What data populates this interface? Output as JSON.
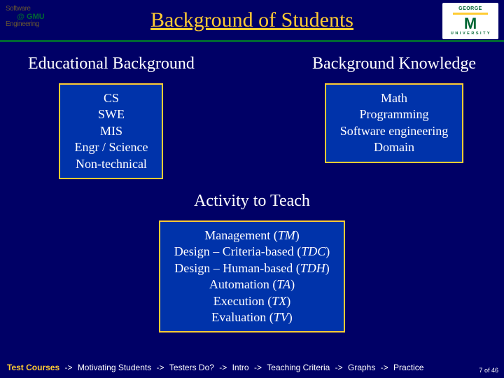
{
  "header": {
    "logo_left_line1": "@ GMU",
    "title": "Background of Students",
    "mason_letter": "M",
    "mason_line1": "GEORGE",
    "mason_line2": "U N I V E R S I T Y"
  },
  "left_col": {
    "heading": "Educational Background",
    "box": {
      "lines": [
        "CS",
        "SWE",
        "MIS",
        "Engr / Science",
        "Non-technical"
      ]
    }
  },
  "right_col": {
    "heading": "Background Knowledge",
    "box": {
      "lines": [
        "Math",
        "Programming",
        "Software engineering",
        "Domain"
      ]
    }
  },
  "center": {
    "heading": "Activity to Teach",
    "box": {
      "lines": [
        {
          "plain": "Management (",
          "em": "TM",
          "tail": ")"
        },
        {
          "plain": "Design – Criteria-based (",
          "em": "TDC",
          "tail": ")"
        },
        {
          "plain": "Design – Human-based (",
          "em": "TDH",
          "tail": ")"
        },
        {
          "plain": "Automation (",
          "em": "TA",
          "tail": ")"
        },
        {
          "plain": "Execution (",
          "em": "TX",
          "tail": ")"
        },
        {
          "plain": "Evaluation (",
          "em": "TV",
          "tail": ")"
        }
      ]
    }
  },
  "footer": {
    "items": [
      "Test Courses",
      "Motivating Students",
      "Testers Do?",
      "Intro",
      "Teaching Criteria",
      "Graphs",
      "Practice"
    ],
    "current_index": 0,
    "arrow": "->"
  },
  "page": {
    "current": "7",
    "sep": "of",
    "total": "46"
  },
  "style": {
    "bg": "#000066",
    "accent": "#ffcc33",
    "box_bg": "#0033aa",
    "green": "#006633",
    "text": "#ffffff"
  }
}
